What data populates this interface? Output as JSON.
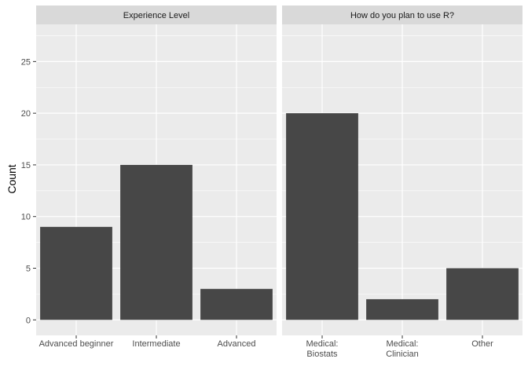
{
  "chart_data": {
    "type": "bar",
    "ylabel": "Count",
    "xlabel": "",
    "ylim": [
      -1.5,
      28.6
    ],
    "yticks": [
      0,
      5,
      10,
      15,
      20,
      25
    ],
    "grid": true,
    "colors": {
      "bar": "#474747",
      "panel_bg": "#ebebeb",
      "strip_bg": "#d9d9d9",
      "grid": "#ffffff"
    },
    "panels": [
      {
        "title": "Experience Level",
        "categories": [
          {
            "lines": [
              "Advanced beginner"
            ]
          },
          {
            "lines": [
              "Intermediate"
            ]
          },
          {
            "lines": [
              "Advanced"
            ]
          }
        ],
        "values": [
          9,
          15,
          3
        ]
      },
      {
        "title": "How do you plan to use R?",
        "categories": [
          {
            "lines": [
              "Medical:",
              "Biostats"
            ]
          },
          {
            "lines": [
              "Medical:",
              "Clinician"
            ]
          },
          {
            "lines": [
              "Other"
            ]
          }
        ],
        "values": [
          20,
          2,
          5
        ]
      }
    ]
  }
}
